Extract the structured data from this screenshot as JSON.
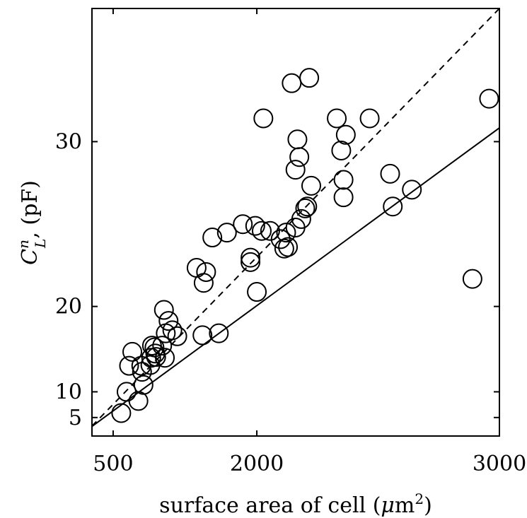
{
  "chart_data": {
    "type": "scatter",
    "xlabel": "surface area of cell (μm²)",
    "ylabel": "C_L^n (pF)",
    "xlim": [
      0,
      3000
    ],
    "ylim": [
      0,
      35
    ],
    "x_scale": "log",
    "y_scale": "log",
    "x_ticks": [
      500,
      2000,
      3000
    ],
    "y_ticks": [
      5,
      10,
      20,
      30
    ],
    "grid": false,
    "series": [
      {
        "marker": "open-circle",
        "points": [
          [
            650,
            6.0
          ],
          [
            740,
            10.0
          ],
          [
            780,
            13.8
          ],
          [
            830,
            15.5
          ],
          [
            920,
            8.4
          ],
          [
            960,
            13.8
          ],
          [
            970,
            13.0
          ],
          [
            990,
            11.1
          ],
          [
            1080,
            13.9
          ],
          [
            1090,
            14.8
          ],
          [
            1100,
            16.2
          ],
          [
            1130,
            16.0
          ],
          [
            1140,
            15.3
          ],
          [
            1150,
            14.9
          ],
          [
            1220,
            16.2
          ],
          [
            1240,
            19.7
          ],
          [
            1250,
            14.8
          ],
          [
            1260,
            17.5
          ],
          [
            1290,
            18.7
          ],
          [
            1330,
            17.8
          ],
          [
            1380,
            17.2
          ],
          [
            1560,
            23.0
          ],
          [
            1610,
            17.3
          ],
          [
            1620,
            21.9
          ],
          [
            1640,
            22.7
          ],
          [
            1690,
            25.0
          ],
          [
            1740,
            17.5
          ],
          [
            1800,
            25.3
          ],
          [
            1910,
            25.8
          ],
          [
            1960,
            23.7
          ],
          [
            1960,
            23.4
          ],
          [
            1990,
            25.7
          ],
          [
            2000,
            21.2
          ],
          [
            2030,
            25.4
          ],
          [
            2040,
            31.0
          ],
          [
            2080,
            25.4
          ],
          [
            2140,
            24.9
          ],
          [
            2160,
            24.3
          ],
          [
            2170,
            25.3
          ],
          [
            2180,
            24.4
          ],
          [
            2200,
            32.4
          ],
          [
            2220,
            25.6
          ],
          [
            2220,
            28.7
          ],
          [
            2230,
            30.1
          ],
          [
            2240,
            29.3
          ],
          [
            2250,
            26.1
          ],
          [
            2270,
            26.7
          ],
          [
            2280,
            26.8
          ],
          [
            2290,
            32.6
          ],
          [
            2300,
            27.9
          ],
          [
            2420,
            31.0
          ],
          [
            2440,
            29.6
          ],
          [
            2450,
            28.2
          ],
          [
            2450,
            27.3
          ],
          [
            2460,
            30.3
          ],
          [
            2560,
            31.0
          ],
          [
            2640,
            28.5
          ],
          [
            2650,
            26.8
          ],
          [
            2720,
            27.7
          ],
          [
            2920,
            22.2
          ],
          [
            2970,
            31.8
          ]
        ]
      }
    ],
    "lines": [
      {
        "style": "solid",
        "points": [
          [
            0,
            2.8
          ],
          [
            3000,
            30.6
          ]
        ]
      },
      {
        "style": "dashed",
        "points": [
          [
            0,
            2.9
          ],
          [
            3000,
            35.0
          ]
        ]
      }
    ]
  }
}
